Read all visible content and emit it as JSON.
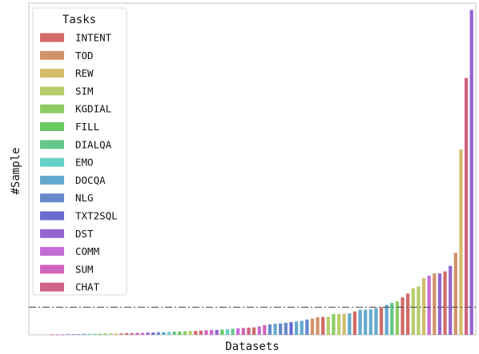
{
  "chart_data": {
    "type": "bar",
    "xlabel": "Datasets",
    "ylabel": "#Sample",
    "x_ticks_shown": false,
    "y_ticks_shown": false,
    "grid": false,
    "legend": {
      "title": "Tasks",
      "placement": "top-left",
      "entries": [
        {
          "name": "INTENT",
          "color": "#d06a68"
        },
        {
          "name": "TOD",
          "color": "#d1926a"
        },
        {
          "name": "REW",
          "color": "#d2bd68"
        },
        {
          "name": "SIM",
          "color": "#b6cd6a"
        },
        {
          "name": "KGDIAL",
          "color": "#8fcc65"
        },
        {
          "name": "FILL",
          "color": "#69c961"
        },
        {
          "name": "DIALQA",
          "color": "#63c889"
        },
        {
          "name": "EMO",
          "color": "#66d0c4"
        },
        {
          "name": "DOCQA",
          "color": "#63a9cd"
        },
        {
          "name": "NLG",
          "color": "#6789cb"
        },
        {
          "name": "TXT2SQL",
          "color": "#6a6bd0"
        },
        {
          "name": "DST",
          "color": "#9465cf"
        },
        {
          "name": "COMM",
          "color": "#c56cd6"
        },
        {
          "name": "SUM",
          "color": "#d064bb"
        },
        {
          "name": "CHAT",
          "color": "#cf6385"
        }
      ]
    },
    "reference_line": {
      "value": 0.085,
      "style": "dash-dot"
    },
    "ylim": [
      0,
      1.02
    ],
    "series": [
      {
        "name": "datasets",
        "values": [
          0.001,
          0.001,
          0.001,
          0.002,
          0.002,
          0.002,
          0.003,
          0.003,
          0.003,
          0.003,
          0.004,
          0.004,
          0.004,
          0.005,
          0.005,
          0.005,
          0.006,
          0.006,
          0.007,
          0.007,
          0.008,
          0.008,
          0.009,
          0.01,
          0.01,
          0.011,
          0.012,
          0.012,
          0.013,
          0.014,
          0.015,
          0.015,
          0.016,
          0.017,
          0.019,
          0.02,
          0.021,
          0.022,
          0.023,
          0.026,
          0.03,
          0.032,
          0.034,
          0.035,
          0.037,
          0.039,
          0.041,
          0.043,
          0.047,
          0.05,
          0.054,
          0.055,
          0.055,
          0.064,
          0.064,
          0.065,
          0.066,
          0.072,
          0.077,
          0.077,
          0.078,
          0.082,
          0.085,
          0.092,
          0.098,
          0.103,
          0.115,
          0.127,
          0.143,
          0.149,
          0.175,
          0.182,
          0.189,
          0.189,
          0.195,
          0.212,
          0.252,
          0.57,
          0.79,
          0.999
        ],
        "colors_by_task": [
          "CHAT",
          "SUM",
          "COMM",
          "DST",
          "TXT2SQL",
          "NLG",
          "DOCQA",
          "EMO",
          "DIALQA",
          "FILL",
          "KGDIAL",
          "SIM",
          "REW",
          "TOD",
          "INTENT",
          "CHAT",
          "SUM",
          "COMM",
          "DST",
          "TXT2SQL",
          "NLG",
          "DOCQA",
          "EMO",
          "DIALQA",
          "FILL",
          "KGDIAL",
          "SIM",
          "INTENT",
          "CHAT",
          "SUM",
          "COMM",
          "DST",
          "FILL",
          "EMO",
          "DIALQA",
          "COMM",
          "SUM",
          "CHAT",
          "INTENT",
          "COMM",
          "SUM",
          "NLG",
          "DOCQA",
          "NLG",
          "NLG",
          "TXT2SQL",
          "DOCQA",
          "DOCQA",
          "NLG",
          "TOD",
          "TOD",
          "INTENT",
          "SIM",
          "KGDIAL",
          "SIM",
          "REW",
          "DOCQA",
          "INTENT",
          "DOCQA",
          "DOCQA",
          "DOCQA",
          "DOCQA",
          "INTENT",
          "DOCQA",
          "DIALQA",
          "KGDIAL",
          "INTENT",
          "INTENT",
          "SIM",
          "SIM",
          "REW",
          "COMM",
          "TOD",
          "DST",
          "INTENT",
          "DST",
          "TOD",
          "REW",
          "CHAT",
          "DST"
        ]
      }
    ]
  }
}
